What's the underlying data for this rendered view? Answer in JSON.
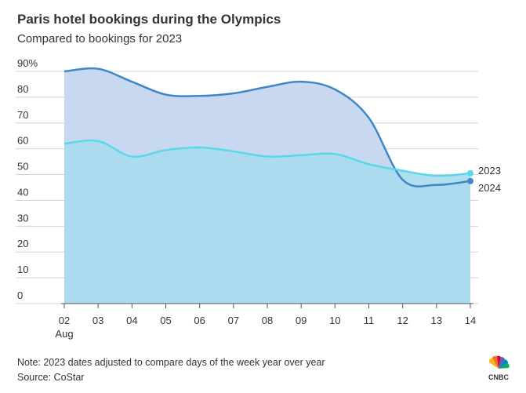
{
  "chart_data": {
    "type": "area",
    "title": "Paris hotel bookings during the Olympics",
    "subtitle": "Compared to bookings for 2023",
    "categories": [
      "02",
      "03",
      "04",
      "05",
      "06",
      "07",
      "08",
      "09",
      "10",
      "11",
      "12",
      "13",
      "14"
    ],
    "first_category_month": "Aug",
    "series": [
      {
        "name": "2024",
        "color": "#3f87c6",
        "fill": "#c7d8f0",
        "values": [
          90,
          91,
          86,
          81,
          80.5,
          81.5,
          84,
          86,
          83,
          72,
          48,
          46,
          47.5
        ]
      },
      {
        "name": "2023",
        "color": "#5ad8ea",
        "fill": "#a8dcee",
        "values": [
          62,
          63,
          57,
          59.5,
          60.5,
          59,
          57,
          57.5,
          58,
          54,
          51.5,
          49.5,
          50.5
        ]
      }
    ],
    "ylim": [
      0,
      90
    ],
    "yticks": [
      0,
      10,
      20,
      30,
      40,
      50,
      60,
      70,
      80,
      {
        "value": 90,
        "label": "90%"
      }
    ],
    "grid": true,
    "note": "Note: 2023 dates adjusted to compare days of the week year over year",
    "source": "Source: CoStar",
    "logo": "CNBC"
  }
}
